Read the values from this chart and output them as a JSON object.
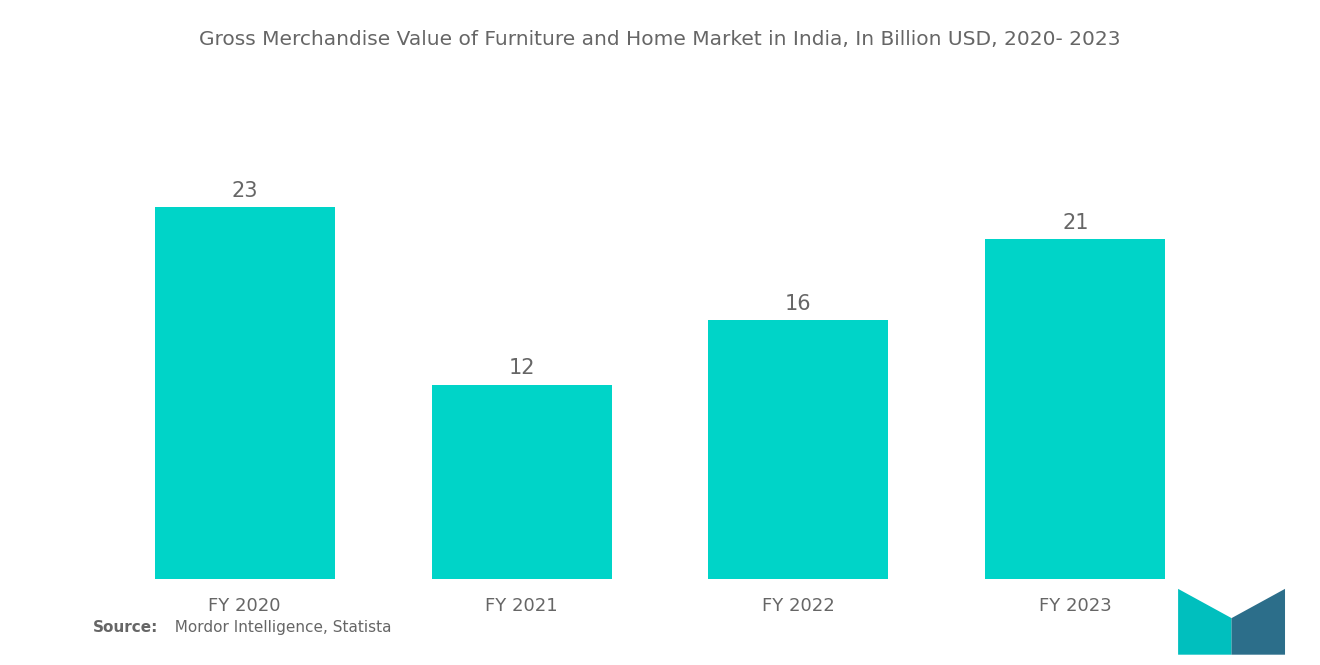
{
  "title": "Gross Merchandise Value of Furniture and Home Market in India, In Billion USD, 2020- 2023",
  "categories": [
    "FY 2020",
    "FY 2021",
    "FY 2022",
    "FY 2023"
  ],
  "values": [
    23,
    12,
    16,
    21
  ],
  "bar_color": "#00D4C8",
  "background_color": "#ffffff",
  "title_fontsize": 14.5,
  "label_fontsize": 13,
  "value_fontsize": 15,
  "source_bold": "Source:",
  "source_normal": "  Mordor Intelligence, Statista",
  "source_fontsize": 11,
  "bar_width": 0.65,
  "ylim": [
    0,
    28
  ]
}
